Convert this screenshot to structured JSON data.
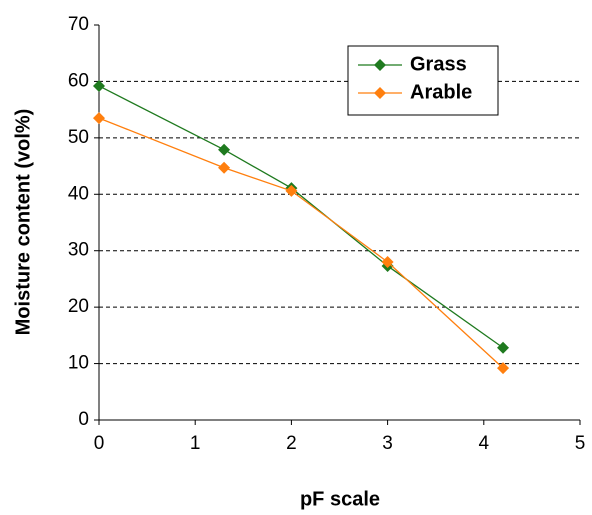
{
  "chart_data": {
    "type": "line",
    "xlabel": "pF scale",
    "ylabel": "Moisture content (vol%)",
    "series": [
      {
        "name": "Grass",
        "color": "#1f7a1f",
        "x": [
          0,
          1.3,
          2,
          3,
          4.2
        ],
        "values": [
          59.2,
          47.9,
          41.1,
          27.3,
          12.8
        ]
      },
      {
        "name": "Arable",
        "color": "#ff7f0e",
        "x": [
          0,
          1.3,
          2,
          3,
          4.2
        ],
        "values": [
          53.5,
          44.7,
          40.6,
          28,
          9.2
        ]
      }
    ],
    "xlim": [
      0,
      5
    ],
    "xticks": [
      0,
      1,
      2,
      3,
      4,
      5
    ],
    "ylim": [
      0,
      70
    ],
    "yticks": [
      0,
      10,
      20,
      30,
      40,
      50,
      60,
      70
    ],
    "grid": true,
    "legend": "upper right"
  }
}
